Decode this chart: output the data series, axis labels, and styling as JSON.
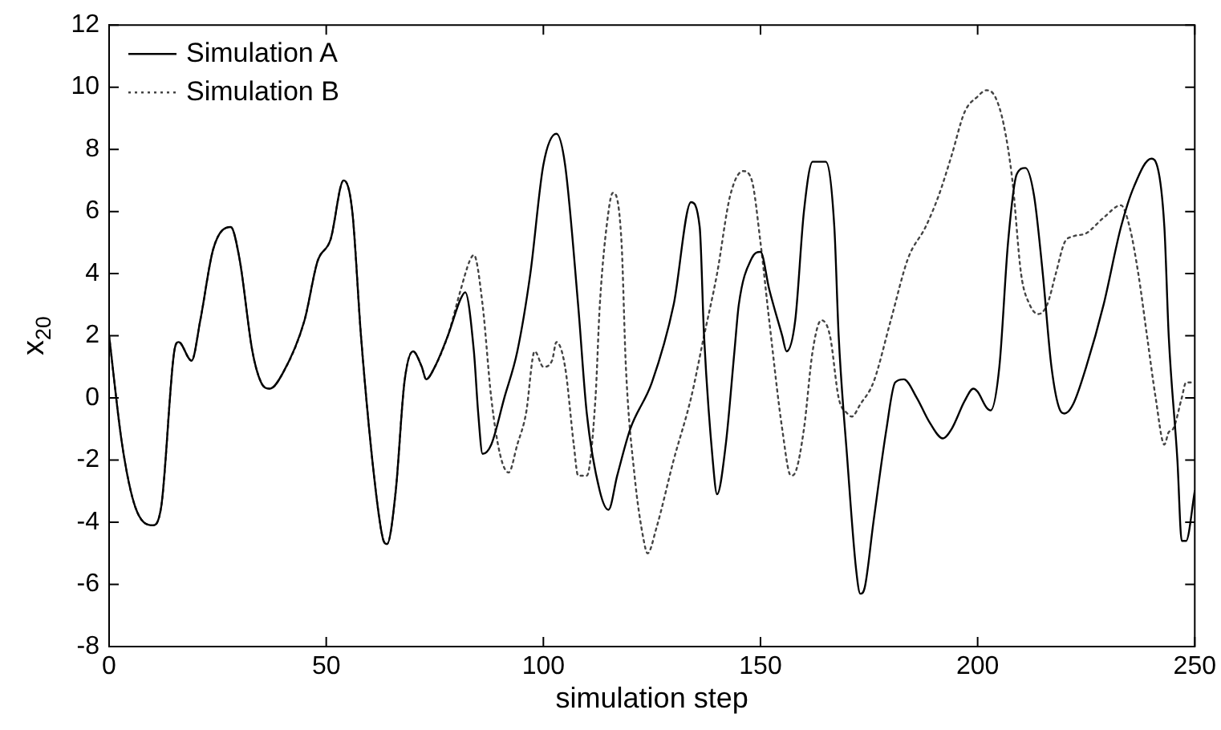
{
  "chart_data": {
    "type": "line",
    "xlabel": "simulation step",
    "ylabel": "x$_{20}$",
    "xlim": [
      0,
      250
    ],
    "xticks": [
      0,
      50,
      100,
      150,
      200,
      250
    ],
    "ylim": [
      -8,
      12
    ],
    "yticks": [
      -8,
      -6,
      -4,
      -2,
      0,
      2,
      4,
      6,
      8,
      10,
      12
    ],
    "grid": false,
    "legend": "top left",
    "marker": "none",
    "series": [
      {
        "name": "Simulation A",
        "color": "#000000",
        "line_style": "solid",
        "x": [
          0,
          3,
          6,
          10,
          12,
          15,
          16,
          19,
          21,
          24,
          28,
          30,
          33,
          35,
          37,
          40,
          45,
          48,
          51,
          54,
          56,
          58,
          61,
          63,
          64,
          66,
          68,
          70,
          72,
          73,
          75,
          78,
          81,
          82,
          84,
          85,
          86,
          88,
          91,
          94,
          97,
          100,
          103,
          105,
          108,
          110,
          113,
          115,
          117,
          120,
          125,
          130,
          134,
          136,
          137,
          139,
          140,
          142,
          144,
          145,
          148,
          150,
          152,
          155,
          156,
          158,
          160,
          162,
          165,
          167,
          168,
          170,
          172,
          173,
          174,
          176,
          179,
          181,
          183,
          186,
          189,
          192,
          194,
          197,
          199,
          200,
          202,
          203,
          205,
          207,
          209,
          211,
          213,
          215,
          217,
          219,
          220,
          222,
          225,
          229,
          233,
          236,
          240,
          241,
          243,
          244,
          246,
          247,
          248,
          250
        ],
        "values": [
          2,
          -1.5,
          -3.5,
          -4.1,
          -3.5,
          1.5,
          1.8,
          1.2,
          2.5,
          4.8,
          5.5,
          4.5,
          1.5,
          0.5,
          0.3,
          0.8,
          2.5,
          4.4,
          5.1,
          7,
          6,
          2,
          -2.5,
          -4.5,
          -4.7,
          -3,
          0.5,
          1.5,
          1,
          0.6,
          1,
          2,
          3.2,
          3.4,
          1.5,
          -0.5,
          -1.8,
          -1.5,
          0,
          1.5,
          4,
          7.5,
          8.5,
          7.5,
          3,
          -0.5,
          -3,
          -3.6,
          -2.5,
          -1,
          0.5,
          3,
          6.3,
          5.5,
          2,
          -2,
          -3.1,
          -1.5,
          1.5,
          3,
          4.5,
          4.7,
          3.5,
          2,
          1.5,
          2.5,
          6,
          7.6,
          7.6,
          5.5,
          2,
          -2,
          -5.5,
          -6.3,
          -6.1,
          -4,
          -1,
          0.5,
          0.6,
          0,
          -0.8,
          -1.3,
          -1,
          -0.1,
          0.3,
          0.2,
          -0.3,
          -0.4,
          1,
          5,
          7.2,
          7.4,
          6.5,
          4,
          1,
          -0.4,
          -0.5,
          -0.2,
          1,
          3,
          5.5,
          6.8,
          7.7,
          7.6,
          5.5,
          2,
          -2,
          -4.6,
          -4.6,
          -3
        ]
      },
      {
        "name": "Simulation B",
        "color": "#444444",
        "line_style": "dotted",
        "x": [
          0,
          3,
          6,
          10,
          12,
          15,
          16,
          19,
          21,
          24,
          28,
          30,
          33,
          35,
          37,
          40,
          45,
          48,
          51,
          54,
          56,
          58,
          61,
          63,
          64,
          66,
          68,
          70,
          72,
          73,
          75,
          78,
          81,
          83,
          84,
          86,
          88,
          90,
          92,
          94,
          96,
          98,
          100,
          102,
          103,
          105,
          107,
          108,
          110,
          112,
          113,
          115,
          116,
          118,
          119,
          121,
          123,
          124,
          126,
          130,
          134,
          137,
          140,
          143,
          146,
          148,
          150,
          152,
          155,
          157,
          158,
          160,
          162,
          164,
          166,
          168,
          170,
          171,
          173,
          176,
          180,
          184,
          188,
          191,
          194,
          197,
          200,
          202,
          204,
          206,
          208,
          210,
          212,
          214,
          216,
          218,
          220,
          222,
          225,
          229,
          233,
          235,
          237,
          239,
          241,
          243,
          244,
          245,
          247,
          248,
          250
        ],
        "values": [
          2,
          -1.5,
          -3.5,
          -4.1,
          -3.5,
          1.5,
          1.8,
          1.2,
          2.5,
          4.8,
          5.5,
          4.5,
          1.5,
          0.5,
          0.3,
          0.8,
          2.5,
          4.4,
          5.1,
          7,
          6,
          2,
          -2.5,
          -4.5,
          -4.7,
          -3,
          0.5,
          1.5,
          1,
          0.6,
          1,
          2,
          3.5,
          4.4,
          4.6,
          3,
          0,
          -1.8,
          -2.4,
          -1.5,
          -0.5,
          1.5,
          1,
          1.2,
          1.8,
          1,
          -1.5,
          -2.5,
          -2.5,
          0,
          3,
          6,
          6.6,
          5,
          1,
          -2.5,
          -4.5,
          -5,
          -4.2,
          -2,
          0,
          2,
          4,
          6.5,
          7.3,
          7,
          5,
          2.5,
          -1,
          -2.5,
          -2.4,
          -1,
          1.5,
          2.5,
          2,
          0,
          -0.5,
          -0.6,
          -0.2,
          0.5,
          2.5,
          4.5,
          5.5,
          6.5,
          7.8,
          9.2,
          9.7,
          9.9,
          9.7,
          8.8,
          7,
          4,
          3,
          2.7,
          3,
          4,
          5,
          5.2,
          5.3,
          5.8,
          6.2,
          5.5,
          4,
          2,
          0,
          -1.5,
          -1.1,
          -1,
          0,
          0.5,
          0.5
        ]
      }
    ]
  }
}
